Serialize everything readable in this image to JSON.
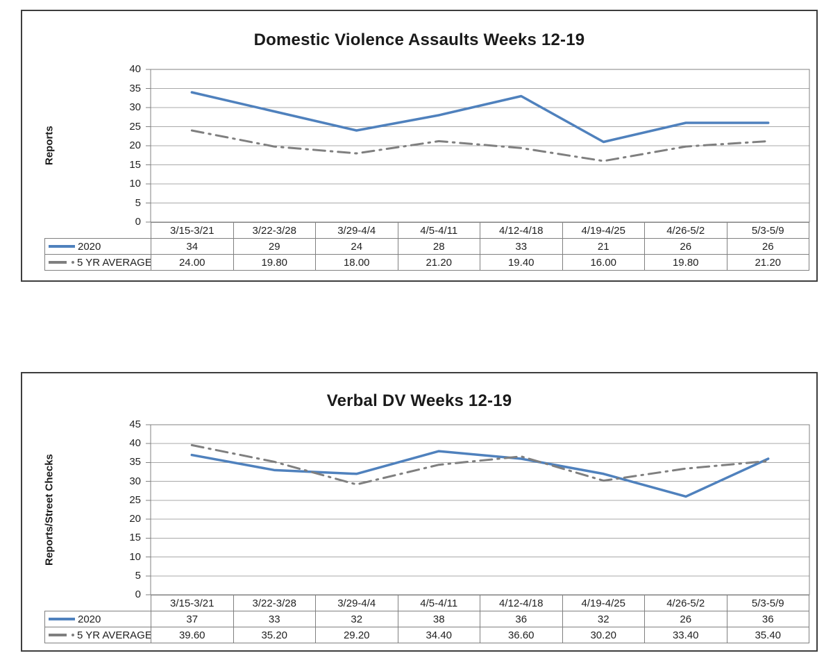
{
  "colors": {
    "series_2020": "#4f81bd",
    "series_5yr": "#7f7f7f",
    "grid_line": "#a8a8a8",
    "plot_frame": "#808080",
    "table_border": "#7f7f7f",
    "card_border": "#3d3d3d",
    "text": "#1f1f1f"
  },
  "chart_data": [
    {
      "type": "line",
      "title": "Domestic Violence Assaults Weeks 12-19",
      "xlabel": "",
      "ylabel": "Reports",
      "ylim": [
        0,
        40
      ],
      "ytick_step": 5,
      "yticks": [
        0,
        5,
        10,
        15,
        20,
        25,
        30,
        35,
        40
      ],
      "grid": true,
      "legend_position": "table-left",
      "categories": [
        "3/15-3/21",
        "3/22-3/28",
        "3/29-4/4",
        "4/5-4/11",
        "4/12-4/18",
        "4/19-4/25",
        "4/26-5/2",
        "5/3-5/9"
      ],
      "series": [
        {
          "name": "2020",
          "values": [
            34,
            29,
            24,
            28,
            33,
            21,
            26,
            26
          ],
          "display_values": [
            "34",
            "29",
            "24",
            "28",
            "33",
            "21",
            "26",
            "26"
          ],
          "color": "#4f81bd",
          "line_style": "solid"
        },
        {
          "name": "5 YR AVERAGE",
          "values": [
            24.0,
            19.8,
            18.0,
            21.2,
            19.4,
            16.0,
            19.8,
            21.2
          ],
          "display_values": [
            "24.00",
            "19.80",
            "18.00",
            "21.20",
            "19.40",
            "16.00",
            "19.80",
            "21.20"
          ],
          "color": "#7f7f7f",
          "line_style": "dash-dot"
        }
      ]
    },
    {
      "type": "line",
      "title": "Verbal DV Weeks 12-19",
      "xlabel": "",
      "ylabel": "Reports/Street Checks",
      "ylim": [
        0,
        45
      ],
      "ytick_step": 5,
      "yticks": [
        0,
        5,
        10,
        15,
        20,
        25,
        30,
        35,
        40,
        45
      ],
      "grid": true,
      "legend_position": "table-left",
      "categories": [
        "3/15-3/21",
        "3/22-3/28",
        "3/29-4/4",
        "4/5-4/11",
        "4/12-4/18",
        "4/19-4/25",
        "4/26-5/2",
        "5/3-5/9"
      ],
      "series": [
        {
          "name": "2020",
          "values": [
            37,
            33,
            32,
            38,
            36,
            32,
            26,
            36
          ],
          "display_values": [
            "37",
            "33",
            "32",
            "38",
            "36",
            "32",
            "26",
            "36"
          ],
          "color": "#4f81bd",
          "line_style": "solid"
        },
        {
          "name": "5 YR AVERAGE",
          "values": [
            39.6,
            35.2,
            29.2,
            34.4,
            36.6,
            30.2,
            33.4,
            35.4
          ],
          "display_values": [
            "39.60",
            "35.20",
            "29.20",
            "34.40",
            "36.60",
            "30.20",
            "33.40",
            "35.40"
          ],
          "color": "#7f7f7f",
          "line_style": "dash-dot"
        }
      ]
    }
  ]
}
